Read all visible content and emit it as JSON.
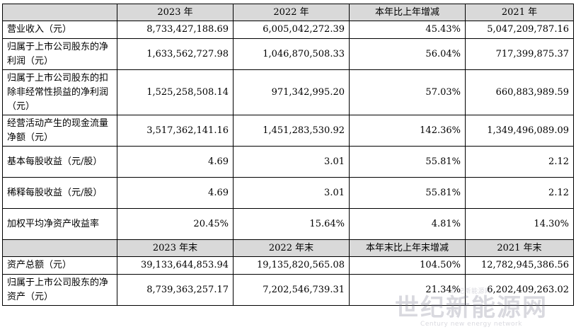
{
  "table": {
    "header1": [
      "",
      "2023 年",
      "2022 年",
      "本年比上年增减",
      "2021 年"
    ],
    "rows1": [
      {
        "label": "营业收入（元）",
        "v": [
          "8,733,427,188.69",
          "6,005,042,272.39",
          "45.43%",
          "5,047,209,787.16"
        ]
      },
      {
        "label": "归属于上市公司股东的净利润（元）",
        "v": [
          "1,633,562,727.98",
          "1,046,870,508.33",
          "56.04%",
          "717,399,875.37"
        ]
      },
      {
        "label": "归属于上市公司股东的扣除非经常性损益的净利润（元）",
        "v": [
          "1,525,258,508.14",
          "971,342,995.20",
          "57.03%",
          "660,883,989.59"
        ]
      },
      {
        "label": "经营活动产生的现金流量净额（元）",
        "v": [
          "3,517,362,141.16",
          "1,451,283,530.92",
          "142.36%",
          "1,349,496,089.09"
        ]
      },
      {
        "label": "基本每股收益（元/股）",
        "v": [
          "4.69",
          "3.01",
          "55.81%",
          "2.12"
        ]
      },
      {
        "label": "稀释每股收益（元/股）",
        "v": [
          "4.69",
          "3.01",
          "55.81%",
          "2.12"
        ]
      },
      {
        "label": "加权平均净资产收益率",
        "v": [
          "20.45%",
          "15.64%",
          "4.81%",
          "14.30%"
        ]
      }
    ],
    "header2": [
      "",
      "2023 年末",
      "2022 年末",
      "本年末比上年末增减",
      "2021 年末"
    ],
    "rows2": [
      {
        "label": "资产总额（元）",
        "v": [
          "39,133,644,853.94",
          "19,135,820,565.08",
          "104.50%",
          "12,782,945,386.56"
        ]
      },
      {
        "label": "归属于上市公司股东的净资产（元）",
        "v": [
          "8,739,363,257.17",
          "7,202,546,739.31",
          "21.34%",
          "6,202,409,263.02"
        ]
      }
    ]
  },
  "watermark": {
    "top": "世纪新能源网",
    "main": "世纪新能源网",
    "sub": "Century new energy network"
  }
}
